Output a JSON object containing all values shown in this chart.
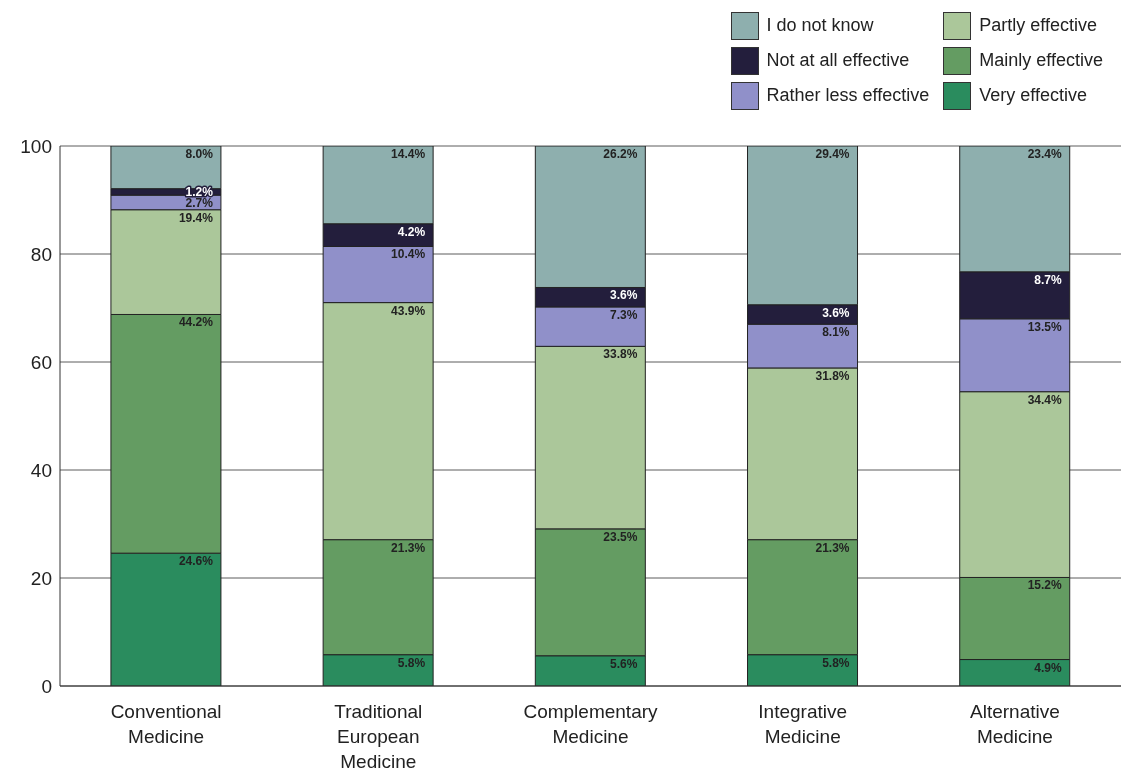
{
  "chart_data": {
    "type": "bar",
    "stacked": true,
    "categories": [
      "Conventional Medicine",
      "Traditional European Medicine",
      "Complementary Medicine",
      "Integrative Medicine",
      "Alternative Medicine"
    ],
    "series": [
      {
        "name": "Very effective",
        "color": "#2a8c5e",
        "values": [
          24.6,
          5.8,
          5.6,
          5.8,
          4.9
        ],
        "value_labels": [
          "24.6%",
          "5.8%",
          "5.6%",
          "5.8%",
          "4.9%"
        ]
      },
      {
        "name": "Mainly effective",
        "color": "#649c62",
        "values": [
          44.2,
          21.3,
          23.5,
          21.3,
          15.2
        ],
        "value_labels": [
          "44.2%",
          "21.3%",
          "23.5%",
          "21.3%",
          "15.2%"
        ]
      },
      {
        "name": "Partly effective",
        "color": "#abc79a",
        "values": [
          19.4,
          43.9,
          33.8,
          31.8,
          34.4
        ],
        "value_labels": [
          "19.4%",
          "43.9%",
          "33.8%",
          "31.8%",
          "34.4%"
        ]
      },
      {
        "name": "Rather less effective",
        "color": "#9090c9",
        "values": [
          2.7,
          10.4,
          7.3,
          8.1,
          13.5
        ],
        "value_labels": [
          "2.7%",
          "10.4%",
          "7.3%",
          "8.1%",
          "13.5%"
        ]
      },
      {
        "name": "Not at all effective",
        "color": "#231e3c",
        "values": [
          1.2,
          4.2,
          3.6,
          3.6,
          8.7
        ],
        "value_labels": [
          "1.2%",
          "4.2%",
          "3.6%",
          "3.6%",
          "8.7%"
        ]
      },
      {
        "name": "I do not know",
        "color": "#8eafae",
        "values": [
          8.0,
          14.4,
          26.2,
          29.4,
          23.4
        ],
        "value_labels": [
          "8.0%",
          "14.4%",
          "26.2%",
          "29.4%",
          "23.4%"
        ]
      }
    ],
    "ylim": [
      0,
      100
    ],
    "yticks": [
      0,
      20,
      40,
      60,
      80,
      100
    ],
    "grid": "y",
    "legend": "top right"
  }
}
